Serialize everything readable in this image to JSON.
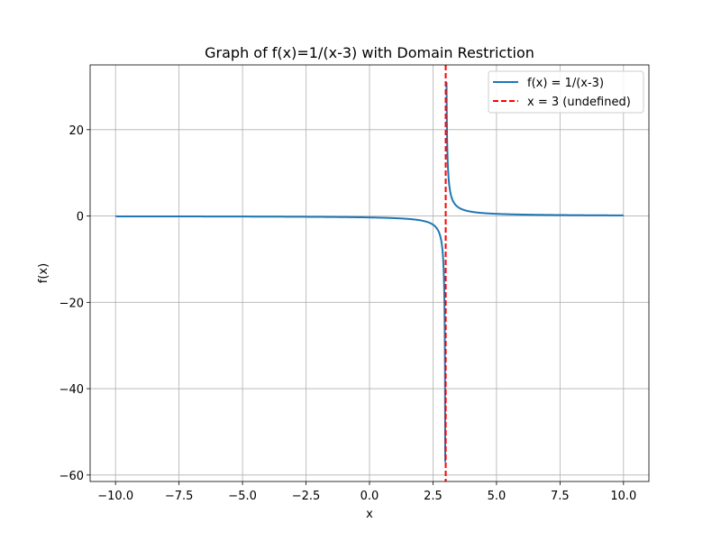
{
  "chart_data": {
    "type": "line",
    "title": "Graph of f(x)=1/(x-3) with Domain Restriction",
    "xlabel": "x",
    "ylabel": "f(x)",
    "xlim": [
      -11.0,
      11.0
    ],
    "ylim": [
      -61.5,
      35.0
    ],
    "x_ticks": [
      -10.0,
      -7.5,
      -5.0,
      -2.5,
      0.0,
      2.5,
      5.0,
      7.5,
      10.0
    ],
    "x_tick_labels": [
      "−10.0",
      "−7.5",
      "−5.0",
      "−2.5",
      "0.0",
      "2.5",
      "5.0",
      "7.5",
      "10.0"
    ],
    "y_ticks": [
      -60,
      -40,
      -20,
      0,
      20
    ],
    "y_tick_labels": [
      "−60",
      "−40",
      "−20",
      "0",
      "20"
    ],
    "grid": true,
    "legend_position": "top-right",
    "series": [
      {
        "name": "f(x) = 1/(x-3)",
        "style": "solid",
        "color": "#1f77b4",
        "function": "1/(x-3)",
        "x_range": [
          -10,
          10
        ],
        "y_range": [
          -57,
          31
        ]
      },
      {
        "name": "x = 3 (undefined)",
        "style": "dashed",
        "color": "#ff0000",
        "vline_x": 3
      }
    ]
  }
}
